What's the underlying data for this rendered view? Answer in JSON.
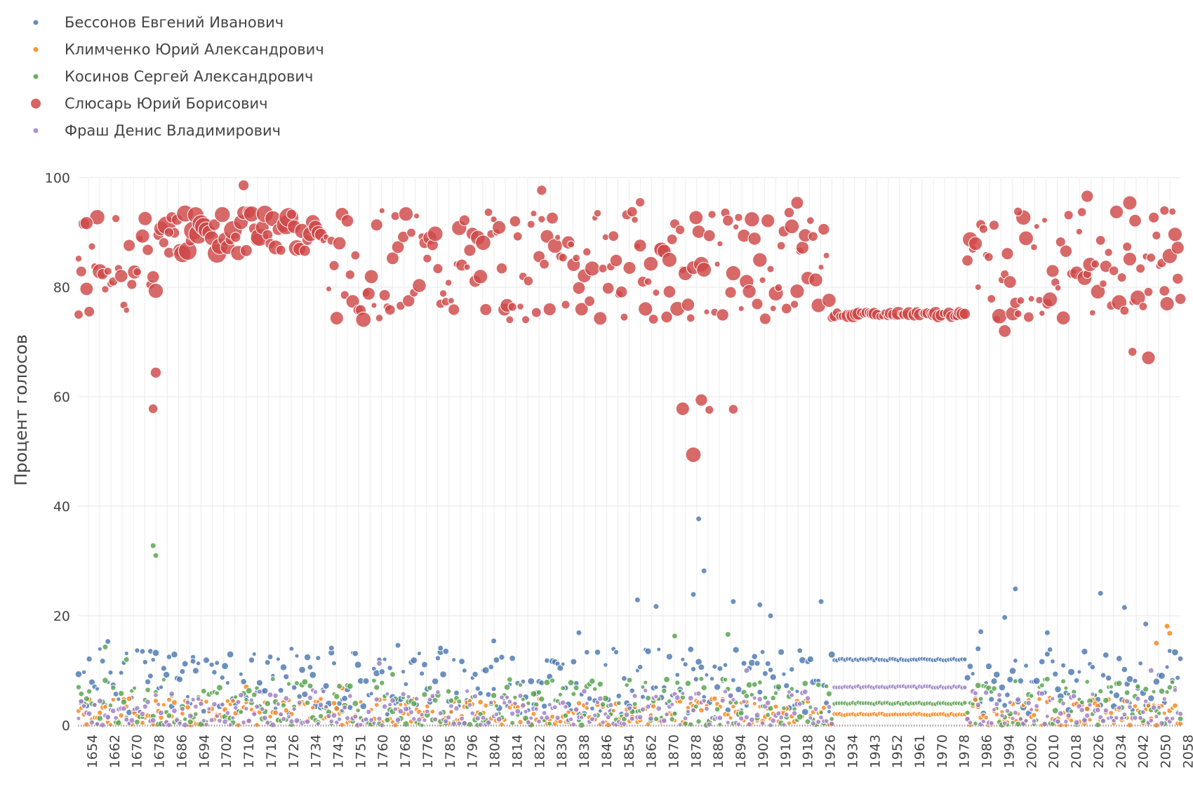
{
  "chart_data": {
    "type": "scatter",
    "title": "",
    "xlabel": "",
    "ylabel": "Процент голосов",
    "ylim": [
      0,
      100
    ],
    "yticks": [
      0,
      20,
      40,
      60,
      80,
      100
    ],
    "xlim": [
      1650,
      2064
    ],
    "x_tick_labels": [
      "1654",
      "1662",
      "1670",
      "1678",
      "1686",
      "1694",
      "1702",
      "1710",
      "1718",
      "1726",
      "1734",
      "1743",
      "1751",
      "1760",
      "1768",
      "1776",
      "1785",
      "1796",
      "1804",
      "1814",
      "1822",
      "1830",
      "1838",
      "1846",
      "1854",
      "1862",
      "1870",
      "1878",
      "1886",
      "1894",
      "1902",
      "1910",
      "1918",
      "1926",
      "1934",
      "1943",
      "1952",
      "1961",
      "1970",
      "1978",
      "1986",
      "1994",
      "2002",
      "2010",
      "2018",
      "2026",
      "2034",
      "2042",
      "2050",
      "2058"
    ],
    "grid": true,
    "legend_position": "top-left",
    "note": "x axis is categorical polling-station numbers 1650–2064; bubble size encodes station size",
    "series": [
      {
        "name": "Бессонов Евгений Иванович",
        "color": "#4c78b0",
        "highlights": [
          {
            "x": 1661,
            "y": 15.3
          },
          {
            "x": 1677,
            "y": 9
          },
          {
            "x": 1693,
            "y": 11.7
          },
          {
            "x": 1745,
            "y": 14.1
          },
          {
            "x": 1770,
            "y": 14.6
          },
          {
            "x": 1786,
            "y": 14.1
          },
          {
            "x": 1806,
            "y": 15.4
          },
          {
            "x": 1838,
            "y": 16.9
          },
          {
            "x": 1860,
            "y": 22.9
          },
          {
            "x": 1867,
            "y": 21.7
          },
          {
            "x": 1881,
            "y": 23.9
          },
          {
            "x": 1883,
            "y": 37.7
          },
          {
            "x": 1885,
            "y": 28.2
          },
          {
            "x": 1896,
            "y": 22.6
          },
          {
            "x": 1906,
            "y": 22
          },
          {
            "x": 1910,
            "y": 20
          },
          {
            "x": 1929,
            "y": 22.6
          },
          {
            "x": 1989,
            "y": 17.1
          },
          {
            "x": 1998,
            "y": 19.7
          },
          {
            "x": 2002,
            "y": 24.9
          },
          {
            "x": 2014,
            "y": 16.9
          },
          {
            "x": 2034,
            "y": 24.1
          },
          {
            "x": 2043,
            "y": 21.5
          },
          {
            "x": 2051,
            "y": 18.5
          }
        ],
        "notes": "plateau at about 12% for stations 1934–1983; otherwise mostly 3–15%"
      },
      {
        "name": "Климченко Юрий Александрович",
        "color": "#f58518",
        "highlights": [
          {
            "x": 1713,
            "y": 7
          },
          {
            "x": 1749,
            "y": 6.8
          },
          {
            "x": 2055,
            "y": 15
          },
          {
            "x": 2059,
            "y": 18.1
          },
          {
            "x": 2060,
            "y": 16.8
          }
        ],
        "notes": "plateau at about 2% for stations 1934–1983; otherwise mostly 0–5%"
      },
      {
        "name": "Косинов Сергей Александрович",
        "color": "#54a24b",
        "highlights": [
          {
            "x": 1660,
            "y": 14.3
          },
          {
            "x": 1668,
            "y": 12
          },
          {
            "x": 1678,
            "y": 32.8
          },
          {
            "x": 1679,
            "y": 31
          },
          {
            "x": 1768,
            "y": 9.3
          },
          {
            "x": 1874,
            "y": 16.3
          },
          {
            "x": 1894,
            "y": 16.6
          }
        ],
        "notes": "plateau at about 4% for stations 1934–1983; otherwise mostly 1–10%"
      },
      {
        "name": "Слюсарь Юрий Борисович",
        "color": "#d04848",
        "highlights": [
          {
            "x": 1650,
            "y": 75
          },
          {
            "x": 1653,
            "y": 91.7
          },
          {
            "x": 1679,
            "y": 64.4
          },
          {
            "x": 1678,
            "y": 57.8
          },
          {
            "x": 1684,
            "y": 90
          },
          {
            "x": 1712,
            "y": 98.6
          },
          {
            "x": 1824,
            "y": 97.7
          },
          {
            "x": 1861,
            "y": 95.5
          },
          {
            "x": 1872,
            "y": 85
          },
          {
            "x": 1877,
            "y": 57.8
          },
          {
            "x": 1881,
            "y": 49.4
          },
          {
            "x": 1884,
            "y": 59.4
          },
          {
            "x": 1887,
            "y": 57.6
          },
          {
            "x": 1896,
            "y": 57.7
          },
          {
            "x": 1920,
            "y": 95.4
          },
          {
            "x": 1998,
            "y": 72
          },
          {
            "x": 2003,
            "y": 93.8
          },
          {
            "x": 2029,
            "y": 96.6
          },
          {
            "x": 2045,
            "y": 95.4
          },
          {
            "x": 2046,
            "y": 68.2
          },
          {
            "x": 2052,
            "y": 67.1
          },
          {
            "x": 2058,
            "y": 94
          },
          {
            "x": 2063,
            "y": 87.2
          }
        ],
        "notes": "plateau at about 75% for stations 1934–1983; otherwise mostly 72–98%"
      },
      {
        "name": "Фраш Денис Владимирович",
        "color": "#9d7fc5",
        "highlights": [
          {
            "x": 1763,
            "y": 11.3
          },
          {
            "x": 1901,
            "y": 10
          },
          {
            "x": 2053,
            "y": 10
          }
        ],
        "notes": "plateau at about 7% for stations 1934–1983; otherwise mostly 0–8%"
      }
    ]
  }
}
